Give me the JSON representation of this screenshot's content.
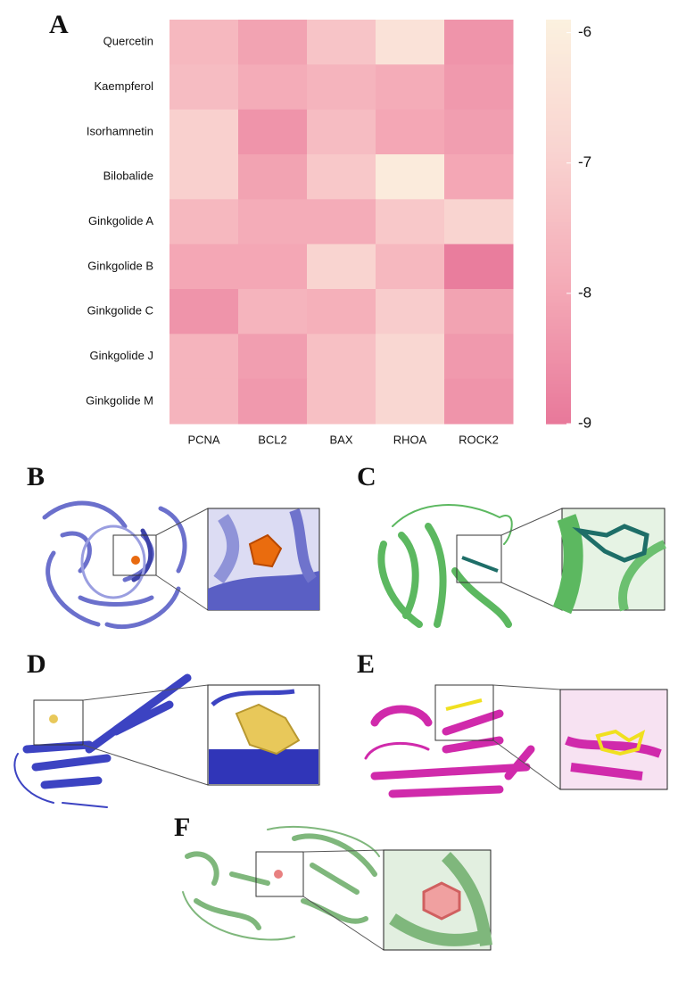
{
  "chart_data": {
    "type": "heatmap",
    "panel_label": "A",
    "rows": [
      "Quercetin",
      "Kaempferol",
      "Isorhamnetin",
      "Bilobalide",
      "Ginkgolide A",
      "Ginkgolide B",
      "Ginkgolide C",
      "Ginkgolide J",
      "Ginkgolide M"
    ],
    "columns": [
      "PCNA",
      "BCL2",
      "BAX",
      "RHOA",
      "ROCK2"
    ],
    "values": [
      [
        -7.6,
        -8.1,
        -7.3,
        -6.4,
        -8.4
      ],
      [
        -7.5,
        -7.9,
        -7.7,
        -7.9,
        -8.3
      ],
      [
        -7.0,
        -8.4,
        -7.5,
        -8.0,
        -8.2
      ],
      [
        -7.0,
        -8.1,
        -7.2,
        -6.1,
        -8.0
      ],
      [
        -7.6,
        -7.9,
        -7.9,
        -7.2,
        -6.9
      ],
      [
        -8.0,
        -8.0,
        -6.9,
        -7.6,
        -8.9
      ],
      [
        -8.4,
        -7.7,
        -7.8,
        -7.1,
        -8.1
      ],
      [
        -7.7,
        -8.2,
        -7.4,
        -6.8,
        -8.3
      ],
      [
        -7.7,
        -8.3,
        -7.4,
        -6.8,
        -8.4
      ]
    ],
    "colormap": [
      "#e8789a",
      "#f4a9b6",
      "#f9d3d0",
      "#fbf1df"
    ],
    "clim": [
      -9,
      -5.9
    ],
    "cticks": [
      -6,
      -7,
      -8,
      -9
    ]
  },
  "panels": [
    {
      "label": "B"
    },
    {
      "label": "C"
    },
    {
      "label": "D"
    },
    {
      "label": "E"
    },
    {
      "label": "F"
    }
  ]
}
